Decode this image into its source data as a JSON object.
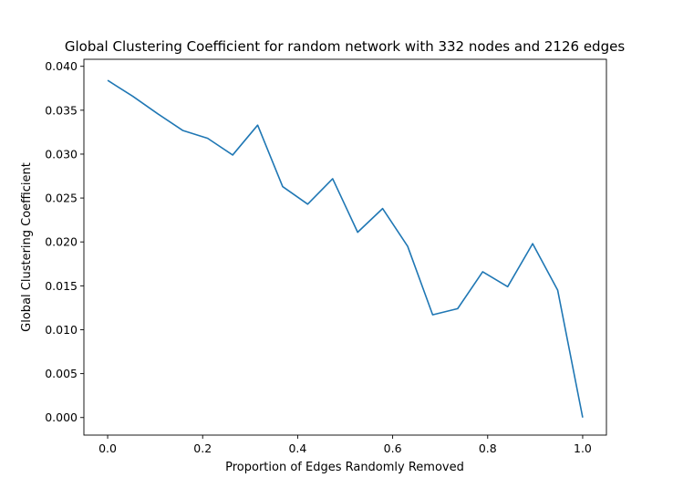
{
  "chart_data": {
    "type": "line",
    "title": "Global Clustering Coefficient for random network with 332 nodes and 2126 edges",
    "xlabel": "Proportion of Edges Randomly Removed",
    "ylabel": "Global Clustering Coefficient",
    "xlim": [
      -0.05,
      1.05
    ],
    "ylim": [
      -0.002,
      0.0408
    ],
    "xticks": [
      0.0,
      0.2,
      0.4,
      0.6,
      0.8,
      1.0
    ],
    "xtick_labels": [
      "0.0",
      "0.2",
      "0.4",
      "0.6",
      "0.8",
      "1.0"
    ],
    "yticks": [
      0.0,
      0.005,
      0.01,
      0.015,
      0.02,
      0.025,
      0.03,
      0.035,
      0.04
    ],
    "ytick_labels": [
      "0.000",
      "0.005",
      "0.010",
      "0.015",
      "0.020",
      "0.025",
      "0.030",
      "0.035",
      "0.040"
    ],
    "grid": false,
    "line_color": "#1f77b4",
    "series": [
      {
        "x": [
          0.0,
          0.0526,
          0.1053,
          0.1579,
          0.2105,
          0.2632,
          0.3158,
          0.3684,
          0.4211,
          0.4737,
          0.5263,
          0.5789,
          0.6316,
          0.6842,
          0.7368,
          0.7895,
          0.8421,
          0.8947,
          0.9474,
          1.0
        ],
        "values": [
          0.0384,
          0.0366,
          0.0346,
          0.0327,
          0.0318,
          0.0299,
          0.0333,
          0.0263,
          0.0243,
          0.0272,
          0.0211,
          0.0238,
          0.0195,
          0.0117,
          0.0124,
          0.0166,
          0.0149,
          0.0198,
          0.0145,
          0.0
        ]
      }
    ]
  }
}
